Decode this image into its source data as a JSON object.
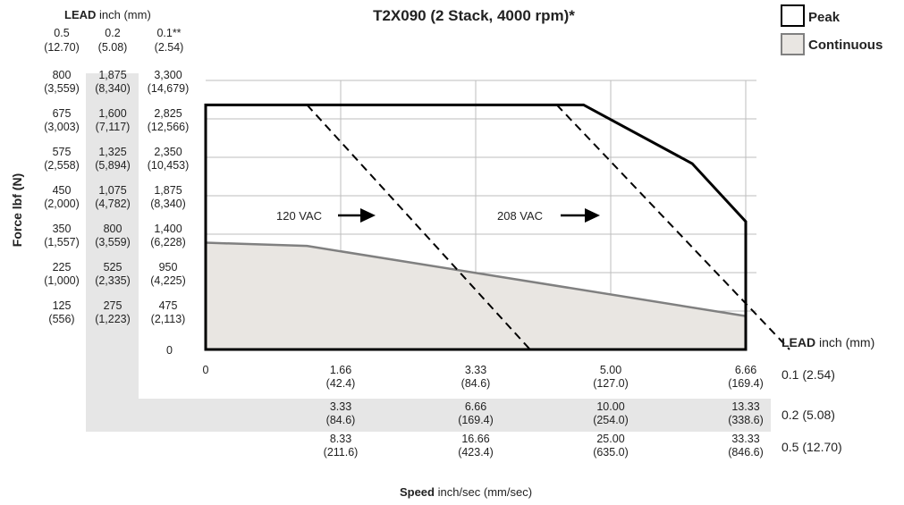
{
  "colors": {
    "lead_red": "#c8102e",
    "gray_band": "#e6e6e6",
    "continuous_fill": "#e9e6e2",
    "continuous_line": "#808080",
    "grid": "#bdbdbd",
    "ink": "#000000"
  },
  "chart_data": {
    "type": "area",
    "title": "T2X090 (2 Stack, 4000 rpm)*",
    "legend": {
      "placement": "top-right",
      "entries": [
        {
          "name": "Peak",
          "swatch": "outline"
        },
        {
          "name": "Continuous",
          "swatch": "filled"
        }
      ]
    },
    "lead_header": {
      "bold": "LEAD",
      "unit": " inch (mm)"
    },
    "lead_columns": [
      {
        "inch": "0.5",
        "mm": "(12.70)"
      },
      {
        "inch": "0.2",
        "mm": "(5.08)"
      },
      {
        "inch": "0.1**",
        "mm": "(2.54)"
      }
    ],
    "ylabel": "Force lbf (N)",
    "xlabel": {
      "bold": "Speed",
      "rest": " inch/sec (mm/sec)"
    },
    "y_axis_ticks": {
      "lead_0_1": [
        {
          "lbf": "3,300",
          "n": "(14,679)"
        },
        {
          "lbf": "2,825",
          "n": "(12,566)"
        },
        {
          "lbf": "2,350",
          "n": "(10,453)"
        },
        {
          "lbf": "1,875",
          "n": "(8,340)"
        },
        {
          "lbf": "1,400",
          "n": "(6,228)"
        },
        {
          "lbf": "950",
          "n": "(4,225)"
        },
        {
          "lbf": "475",
          "n": "(2,113)"
        },
        {
          "lbf": "0",
          "n": ""
        }
      ],
      "lead_0_2": [
        {
          "lbf": "1,875",
          "n": "(8,340)"
        },
        {
          "lbf": "1,600",
          "n": "(7,117)"
        },
        {
          "lbf": "1,325",
          "n": "(5,894)"
        },
        {
          "lbf": "1,075",
          "n": "(4,782)"
        },
        {
          "lbf": "800",
          "n": "(3,559)"
        },
        {
          "lbf": "525",
          "n": "(2,335)"
        },
        {
          "lbf": "275",
          "n": "(1,223)"
        }
      ],
      "lead_0_5": [
        {
          "lbf": "800",
          "n": "(3,559)"
        },
        {
          "lbf": "675",
          "n": "(3,003)"
        },
        {
          "lbf": "575",
          "n": "(2,558)"
        },
        {
          "lbf": "450",
          "n": "(2,000)"
        },
        {
          "lbf": "350",
          "n": "(1,557)"
        },
        {
          "lbf": "225",
          "n": "(1,000)"
        },
        {
          "lbf": "125",
          "n": "(556)"
        }
      ]
    },
    "x_axis_rows": {
      "lead_0_1": {
        "label": "0.1 (2.54)",
        "zero": "0",
        "ticks": [
          {
            "v": "1.66",
            "mm": "(42.4)"
          },
          {
            "v": "3.33",
            "mm": "(84.6)"
          },
          {
            "v": "5.00",
            "mm": "(127.0)"
          },
          {
            "v": "6.66",
            "mm": "(169.4)"
          }
        ]
      },
      "lead_0_2": {
        "label": "0.2 (5.08)",
        "ticks": [
          {
            "v": "3.33",
            "mm": "(84.6)"
          },
          {
            "v": "6.66",
            "mm": "(169.4)"
          },
          {
            "v": "10.00",
            "mm": "(254.0)"
          },
          {
            "v": "13.33",
            "mm": "(338.6)"
          }
        ]
      },
      "lead_0_5": {
        "label": "0.5 (12.70)",
        "ticks": [
          {
            "v": "8.33",
            "mm": "(211.6)"
          },
          {
            "v": "16.66",
            "mm": "(423.4)"
          },
          {
            "v": "25.00",
            "mm": "(635.0)"
          },
          {
            "v": "33.33",
            "mm": "(846.6)"
          }
        ]
      }
    },
    "x_label_header": {
      "bold": "LEAD",
      "unit": " inch (mm)"
    },
    "xlim": [
      0,
      6.66
    ],
    "ylim": [
      0,
      3300
    ],
    "series": [
      {
        "name": "Peak",
        "x": [
          0,
          4.66,
          6.0,
          6.66
        ],
        "y": [
          3000,
          3000,
          2280,
          1570
        ]
      },
      {
        "name": "Continuous",
        "x": [
          0,
          1.25,
          6.66
        ],
        "y": [
          1310,
          1270,
          410
        ]
      }
    ],
    "voltage_limits": [
      {
        "label": "120 VAC",
        "x": [
          1.25,
          4.0
        ],
        "y": [
          3000,
          0
        ]
      },
      {
        "label": "208 VAC",
        "x": [
          4.33,
          7.2
        ],
        "y": [
          3000,
          0
        ]
      }
    ]
  }
}
